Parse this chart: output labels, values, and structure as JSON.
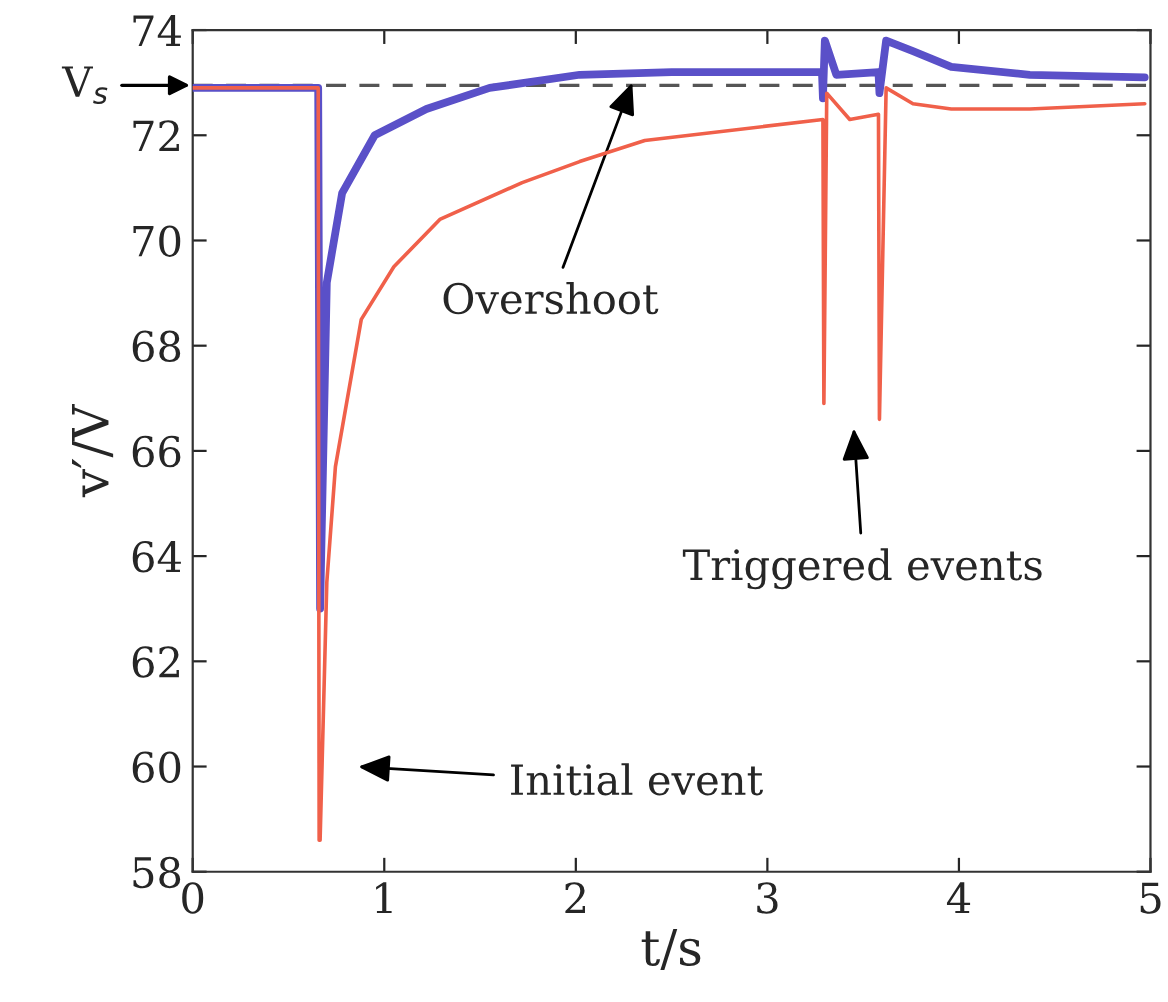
{
  "chart_data": {
    "type": "line",
    "xlabel": "t/s",
    "ylabel": "v′/V",
    "xlim": [
      0,
      5
    ],
    "ylim": [
      58,
      74
    ],
    "xticks": [
      0,
      1,
      2,
      3,
      4,
      5
    ],
    "yticks": [
      58,
      60,
      62,
      64,
      66,
      68,
      70,
      72,
      74
    ],
    "grid": false,
    "series": [
      {
        "color": "#f0604a",
        "x": [
          0,
          0.655,
          0.66,
          0.665,
          0.7,
          0.745,
          0.88,
          1.05,
          1.29,
          1.72,
          2.02,
          2.36,
          3.29,
          3.295,
          3.31,
          3.43,
          3.58,
          3.585,
          3.62,
          3.76,
          3.96,
          4.37,
          4.97
        ],
        "values": [
          72.9,
          72.9,
          58.6,
          58.6,
          63.5,
          65.7,
          68.5,
          69.5,
          70.4,
          71.1,
          71.5,
          71.9,
          72.3,
          66.9,
          72.8,
          72.3,
          72.4,
          66.6,
          72.9,
          72.6,
          72.5,
          72.5,
          72.6
        ]
      },
      {
        "color": "#5a50c8",
        "x": [
          0,
          0.655,
          0.665,
          0.7,
          0.78,
          0.95,
          1.22,
          1.55,
          2.02,
          2.5,
          3.285,
          3.29,
          3.3,
          3.36,
          3.58,
          3.585,
          3.62,
          3.76,
          3.96,
          4.37,
          4.97
        ],
        "values": [
          72.9,
          72.9,
          63.0,
          69.2,
          70.9,
          72.0,
          72.5,
          72.9,
          73.15,
          73.2,
          73.2,
          72.7,
          73.8,
          73.15,
          73.2,
          72.8,
          73.8,
          73.6,
          73.3,
          73.15,
          73.1
        ]
      }
    ],
    "ref_lines": [
      {
        "axis": "y",
        "value": 72.95,
        "label": "V$_{s}$",
        "color": "#555555",
        "line_style": "dashed"
      }
    ],
    "annotations": [
      {
        "text": "Overshoot",
        "x": 2.3,
        "y": 73.05
      },
      "Triggered events",
      "Initial event"
    ]
  }
}
